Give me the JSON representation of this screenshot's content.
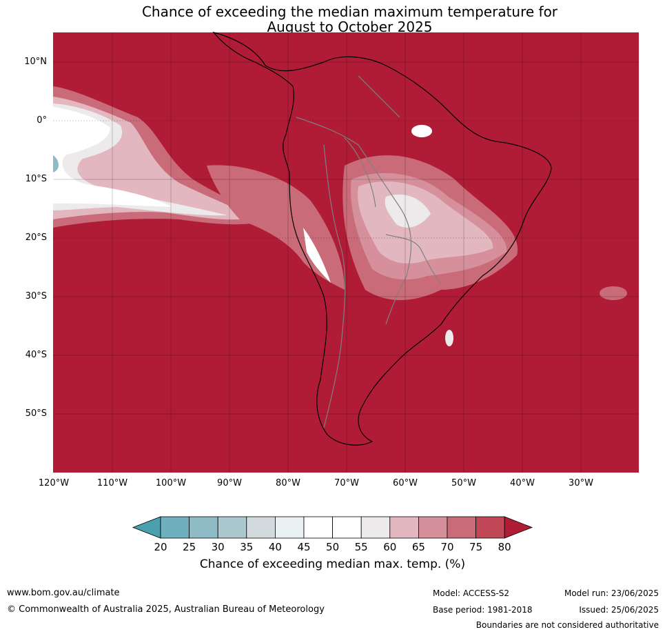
{
  "title_line1": "Chance of exceeding the median maximum temperature for",
  "title_line2": "August to October 2025",
  "colors": {
    "ocean_land_fill": "#b01c36",
    "gridline": "#000000",
    "coastline": "#000000",
    "borders": "#808080"
  },
  "lat_labels": [
    "10°N",
    "0°",
    "10°S",
    "20°S",
    "30°S",
    "40°S",
    "50°S"
  ],
  "lon_labels": [
    "120°W",
    "110°W",
    "100°W",
    "90°W",
    "80°W",
    "70°W",
    "60°W",
    "50°W",
    "40°W",
    "30°W"
  ],
  "legend": {
    "ticks": [
      "20",
      "25",
      "30",
      "35",
      "40",
      "45",
      "50",
      "55",
      "60",
      "65",
      "70",
      "75",
      "80"
    ],
    "colors": [
      "#4aa0af",
      "#6eb0bd",
      "#8fbbc7",
      "#aac8cd",
      "#d2dadd",
      "#e9f0f2",
      "#ffffff",
      "#ffffff",
      "#eceaeb",
      "#e2b7bf",
      "#d5909b",
      "#c96b79",
      "#c04755",
      "#b01c36"
    ],
    "title": "Chance of exceeding median max. temp. (%)"
  },
  "footer": {
    "website": "www.bom.gov.au/climate",
    "copyright": "© Commonwealth of Australia 2025, Australian Bureau of Meteorology",
    "model": "Model: ACCESS-S2",
    "base_period": "Base period: 1981-2018",
    "model_run": "Model run: 23/06/2025",
    "issued": "Issued: 25/06/2025",
    "disclaimer": "Boundaries are not considered authoritative"
  }
}
